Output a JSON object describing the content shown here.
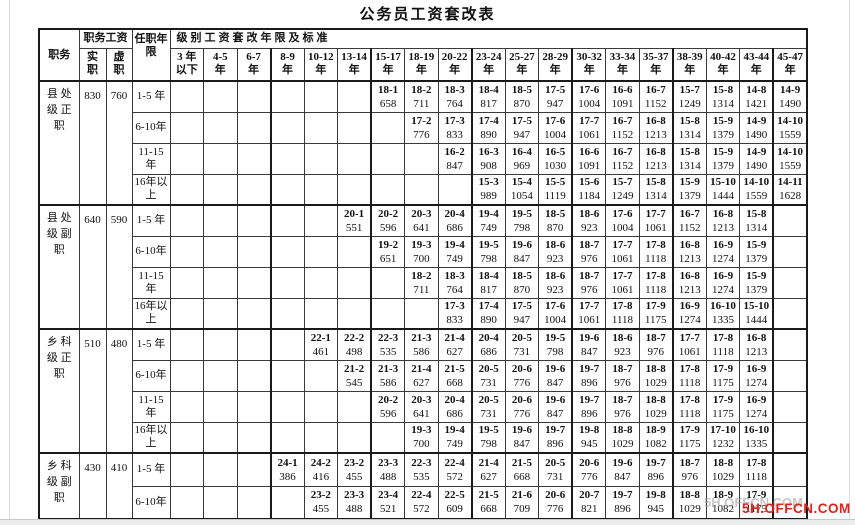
{
  "title": "公务员工资套改表",
  "watermark": {
    "text": "5H.OFFCN.COM",
    "color": "#d9251c"
  },
  "table": {
    "headers": {
      "position": "职务",
      "salary_group": "职务工资",
      "salary_sub": [
        "实\n职",
        "虚\n职"
      ],
      "tenure": "任职年\n限",
      "grade_group": "级别工资套改年限及标准",
      "year_columns": [
        "3 年\n以下",
        "4-5\n年",
        "6-7\n年",
        "8-9\n年",
        "10-12\n年",
        "13-14\n年",
        "15-17\n年",
        "18-19\n年",
        "20-22\n年",
        "23-24\n年",
        "25-27\n年",
        "28-29\n年",
        "30-32\n年",
        "33-34\n年",
        "35-37\n年",
        "38-39\n年",
        "40-42\n年",
        "43-44\n年",
        "45-47\n年"
      ]
    },
    "bands": [
      {
        "position": "县 处\n级 正\n职",
        "shizhi": "830",
        "xuzhi": "760",
        "rows": [
          {
            "tenure": "1-5 年",
            "start": 6,
            "cells": [
              [
                "18-1",
                "658"
              ],
              [
                "18-2",
                "711"
              ],
              [
                "18-3",
                "764"
              ],
              [
                "18-4",
                "817"
              ],
              [
                "18-5",
                "870"
              ],
              [
                "17-5",
                "947"
              ],
              [
                "17-6",
                "1004"
              ],
              [
                "16-6",
                "1091"
              ],
              [
                "16-7",
                "1152"
              ],
              [
                "15-7",
                "1249"
              ],
              [
                "15-8",
                "1314"
              ],
              [
                "14-8",
                "1421"
              ],
              [
                "14-9",
                "1490"
              ]
            ]
          },
          {
            "tenure": "6-10年",
            "start": 7,
            "cells": [
              [
                "17-2",
                "776"
              ],
              [
                "17-3",
                "833"
              ],
              [
                "17-4",
                "890"
              ],
              [
                "17-5",
                "947"
              ],
              [
                "17-6",
                "1004"
              ],
              [
                "17-7",
                "1061"
              ],
              [
                "16-7",
                "1152"
              ],
              [
                "16-8",
                "1213"
              ],
              [
                "15-8",
                "1314"
              ],
              [
                "15-9",
                "1379"
              ],
              [
                "14-9",
                "1490"
              ],
              [
                "14-10",
                "1559"
              ]
            ]
          },
          {
            "tenure": "11-15\n年",
            "start": 8,
            "cells": [
              [
                "16-2",
                "847"
              ],
              [
                "16-3",
                "908"
              ],
              [
                "16-4",
                "969"
              ],
              [
                "16-5",
                "1030"
              ],
              [
                "16-6",
                "1091"
              ],
              [
                "16-7",
                "1152"
              ],
              [
                "16-8",
                "1213"
              ],
              [
                "15-8",
                "1314"
              ],
              [
                "15-9",
                "1379"
              ],
              [
                "14-9",
                "1490"
              ],
              [
                "14-10",
                "1559"
              ]
            ]
          },
          {
            "tenure": "16年以\n上",
            "start": 9,
            "cells": [
              [
                "15-3",
                "989"
              ],
              [
                "15-4",
                "1054"
              ],
              [
                "15-5",
                "1119"
              ],
              [
                "15-6",
                "1184"
              ],
              [
                "15-7",
                "1249"
              ],
              [
                "15-8",
                "1314"
              ],
              [
                "15-9",
                "1379"
              ],
              [
                "15-10",
                "1444"
              ],
              [
                "14-10",
                "1559"
              ],
              [
                "14-11",
                "1628"
              ]
            ]
          }
        ]
      },
      {
        "position": "县 处\n级 副\n职",
        "shizhi": "640",
        "xuzhi": "590",
        "rows": [
          {
            "tenure": "1-5 年",
            "start": 5,
            "cells": [
              [
                "20-1",
                "551"
              ],
              [
                "20-2",
                "596"
              ],
              [
                "20-3",
                "641"
              ],
              [
                "20-4",
                "686"
              ],
              [
                "19-4",
                "749"
              ],
              [
                "19-5",
                "798"
              ],
              [
                "18-5",
                "870"
              ],
              [
                "18-6",
                "923"
              ],
              [
                "17-6",
                "1004"
              ],
              [
                "17-7",
                "1061"
              ],
              [
                "16-7",
                "1152"
              ],
              [
                "16-8",
                "1213"
              ],
              [
                "15-8",
                "1314"
              ]
            ]
          },
          {
            "tenure": "6-10年",
            "start": 6,
            "cells": [
              [
                "19-2",
                "651"
              ],
              [
                "19-3",
                "700"
              ],
              [
                "19-4",
                "749"
              ],
              [
                "19-5",
                "798"
              ],
              [
                "19-6",
                "847"
              ],
              [
                "18-6",
                "923"
              ],
              [
                "18-7",
                "976"
              ],
              [
                "17-7",
                "1061"
              ],
              [
                "17-8",
                "1118"
              ],
              [
                "16-8",
                "1213"
              ],
              [
                "16-9",
                "1274"
              ],
              [
                "15-9",
                "1379"
              ]
            ]
          },
          {
            "tenure": "11-15\n年",
            "start": 7,
            "cells": [
              [
                "18-2",
                "711"
              ],
              [
                "18-3",
                "764"
              ],
              [
                "18-4",
                "817"
              ],
              [
                "18-5",
                "870"
              ],
              [
                "18-6",
                "923"
              ],
              [
                "18-7",
                "976"
              ],
              [
                "17-7",
                "1061"
              ],
              [
                "17-8",
                "1118"
              ],
              [
                "16-8",
                "1213"
              ],
              [
                "16-9",
                "1274"
              ],
              [
                "15-9",
                "1379"
              ]
            ]
          },
          {
            "tenure": "16年以\n上",
            "start": 8,
            "cells": [
              [
                "17-3",
                "833"
              ],
              [
                "17-4",
                "890"
              ],
              [
                "17-5",
                "947"
              ],
              [
                "17-6",
                "1004"
              ],
              [
                "17-7",
                "1061"
              ],
              [
                "17-8",
                "1118"
              ],
              [
                "17-9",
                "1175"
              ],
              [
                "16-9",
                "1274"
              ],
              [
                "16-10",
                "1335"
              ],
              [
                "15-10",
                "1444"
              ]
            ]
          }
        ]
      },
      {
        "position": "乡 科\n级 正\n职",
        "shizhi": "510",
        "xuzhi": "480",
        "rows": [
          {
            "tenure": "1-5 年",
            "start": 4,
            "cells": [
              [
                "22-1",
                "461"
              ],
              [
                "22-2",
                "498"
              ],
              [
                "22-3",
                "535"
              ],
              [
                "21-3",
                "586"
              ],
              [
                "21-4",
                "627"
              ],
              [
                "20-4",
                "686"
              ],
              [
                "20-5",
                "731"
              ],
              [
                "19-5",
                "798"
              ],
              [
                "19-6",
                "847"
              ],
              [
                "18-6",
                "923"
              ],
              [
                "18-7",
                "976"
              ],
              [
                "17-7",
                "1061"
              ],
              [
                "17-8",
                "1118"
              ],
              [
                "16-8",
                "1213"
              ]
            ]
          },
          {
            "tenure": "6-10年",
            "start": 5,
            "cells": [
              [
                "21-2",
                "545"
              ],
              [
                "21-3",
                "586"
              ],
              [
                "21-4",
                "627"
              ],
              [
                "21-5",
                "668"
              ],
              [
                "20-5",
                "731"
              ],
              [
                "20-6",
                "776"
              ],
              [
                "19-6",
                "847"
              ],
              [
                "19-7",
                "896"
              ],
              [
                "18-7",
                "976"
              ],
              [
                "18-8",
                "1029"
              ],
              [
                "17-8",
                "1118"
              ],
              [
                "17-9",
                "1175"
              ],
              [
                "16-9",
                "1274"
              ]
            ]
          },
          {
            "tenure": "11-15\n年",
            "start": 6,
            "cells": [
              [
                "20-2",
                "596"
              ],
              [
                "20-3",
                "641"
              ],
              [
                "20-4",
                "686"
              ],
              [
                "20-5",
                "731"
              ],
              [
                "20-6",
                "776"
              ],
              [
                "19-6",
                "847"
              ],
              [
                "19-7",
                "896"
              ],
              [
                "18-7",
                "976"
              ],
              [
                "18-8",
                "1029"
              ],
              [
                "17-8",
                "1118"
              ],
              [
                "17-9",
                "1175"
              ],
              [
                "16-9",
                "1274"
              ]
            ]
          },
          {
            "tenure": "16年以\n上",
            "start": 7,
            "cells": [
              [
                "19-3",
                "700"
              ],
              [
                "19-4",
                "749"
              ],
              [
                "19-5",
                "798"
              ],
              [
                "19-6",
                "847"
              ],
              [
                "19-7",
                "896"
              ],
              [
                "19-8",
                "945"
              ],
              [
                "18-8",
                "1029"
              ],
              [
                "18-9",
                "1082"
              ],
              [
                "17-9",
                "1175"
              ],
              [
                "17-10",
                "1232"
              ],
              [
                "16-10",
                "1335"
              ]
            ]
          }
        ]
      },
      {
        "position": "乡 科\n级 副\n职",
        "shizhi": "430",
        "xuzhi": "410",
        "rows": [
          {
            "tenure": "1-5 年",
            "start": 3,
            "cells": [
              [
                "24-1",
                "386"
              ],
              [
                "24-2",
                "416"
              ],
              [
                "23-2",
                "455"
              ],
              [
                "23-3",
                "488"
              ],
              [
                "22-3",
                "535"
              ],
              [
                "22-4",
                "572"
              ],
              [
                "21-4",
                "627"
              ],
              [
                "21-5",
                "668"
              ],
              [
                "20-5",
                "731"
              ],
              [
                "20-6",
                "776"
              ],
              [
                "19-6",
                "847"
              ],
              [
                "19-7",
                "896"
              ],
              [
                "18-7",
                "976"
              ],
              [
                "18-8",
                "1029"
              ],
              [
                "17-8",
                "1118"
              ]
            ]
          },
          {
            "tenure": "6-10年",
            "start": 4,
            "cells": [
              [
                "23-2",
                "455"
              ],
              [
                "23-3",
                "488"
              ],
              [
                "23-4",
                "521"
              ],
              [
                "22-4",
                "572"
              ],
              [
                "22-5",
                "609"
              ],
              [
                "21-5",
                "668"
              ],
              [
                "21-6",
                "709"
              ],
              [
                "20-6",
                "776"
              ],
              [
                "20-7",
                "821"
              ],
              [
                "19-7",
                "896"
              ],
              [
                "19-8",
                "945"
              ],
              [
                "18-8",
                "1029"
              ],
              [
                "18-9",
                "1082"
              ],
              [
                "17-9",
                "1175"
              ]
            ]
          }
        ]
      }
    ]
  }
}
